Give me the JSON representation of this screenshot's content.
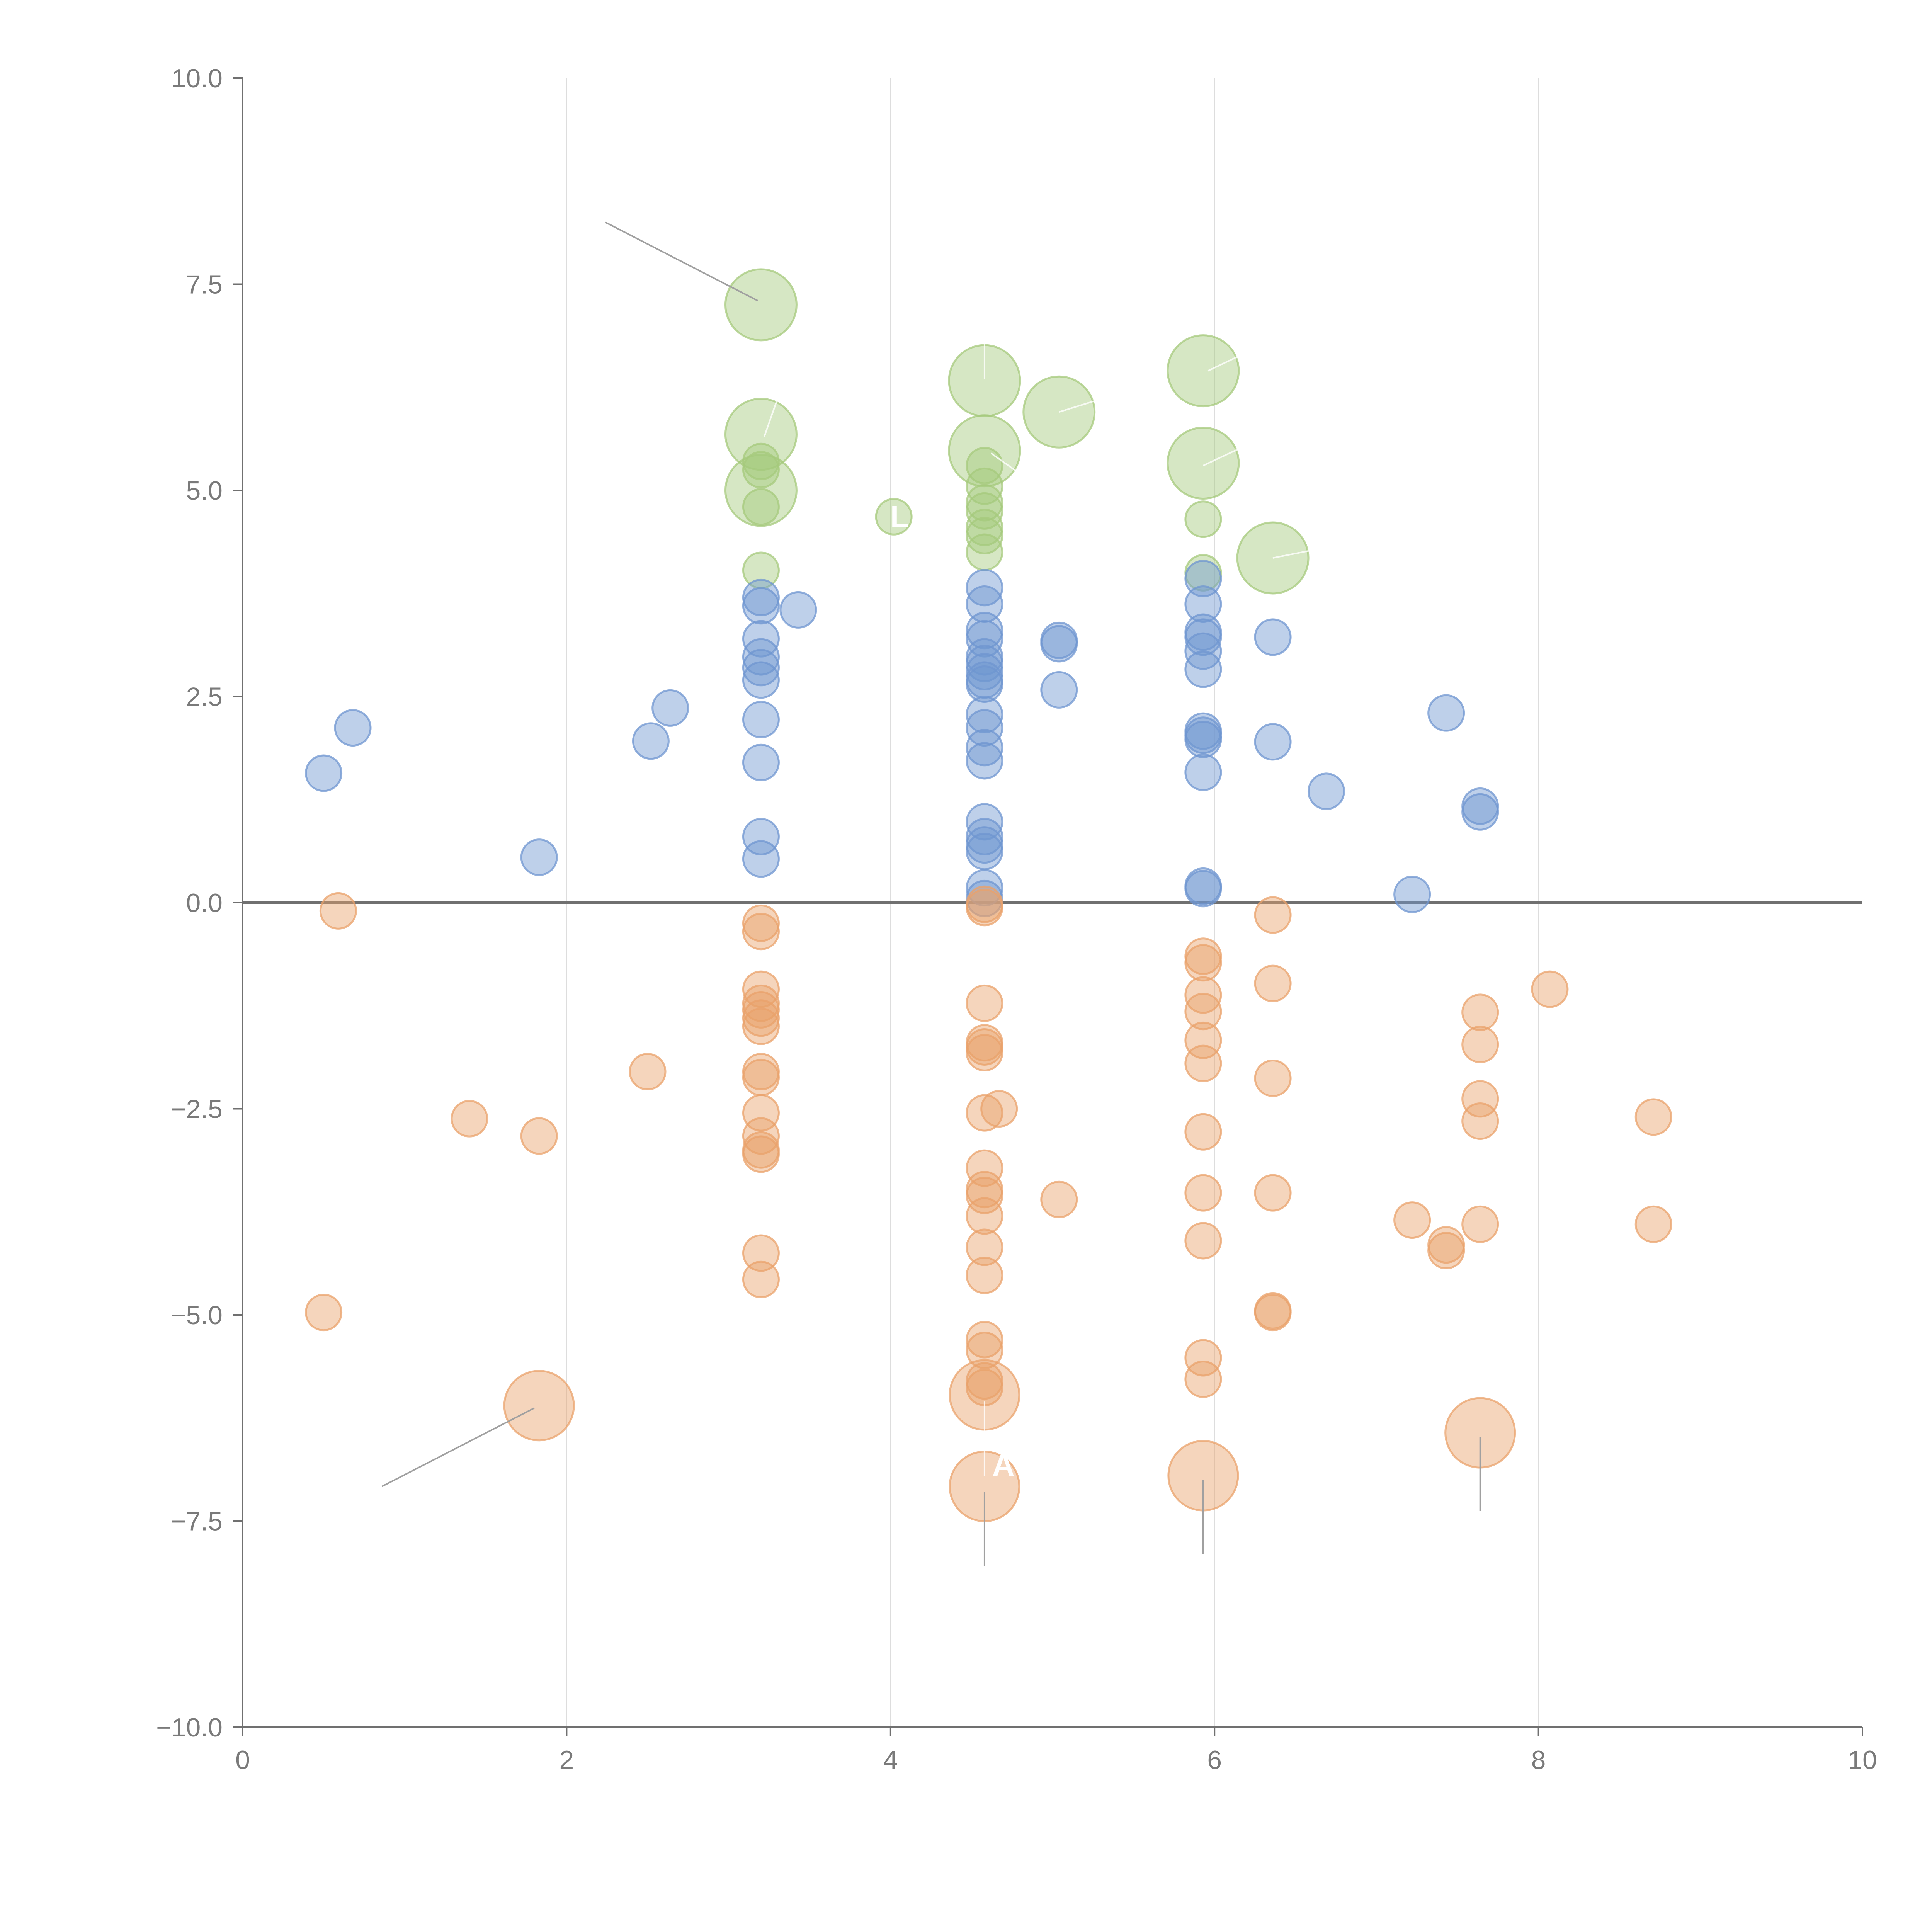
{
  "chart_data": {
    "type": "scatter",
    "title": "",
    "xlabel": "",
    "ylabel": "",
    "xlim": [
      0,
      10
    ],
    "ylim": [
      -10,
      10
    ],
    "x_ticks": [
      "0",
      "2",
      "4",
      "6",
      "8",
      "10"
    ],
    "y_ticks": [
      "10.0",
      "7.5",
      "5.0",
      "2.5",
      "0.0",
      "−2.5",
      "−5.0",
      "−7.5",
      "−10.0"
    ],
    "vertical_gridlines": [
      2,
      4,
      6,
      8
    ],
    "baseline_y": 0,
    "colors": {
      "green": "#a5c97c",
      "blue": "#6f96d0",
      "orange": "#e9a26b",
      "axis": "#707070",
      "grid": "#dddddd",
      "leader": "#a0a0a0"
    },
    "series": [
      {
        "name": "green",
        "points": [
          [
            3.2,
            7.25,
            "l"
          ],
          [
            3.2,
            5.68,
            "l"
          ],
          [
            3.2,
            5.0,
            "l"
          ],
          [
            3.2,
            5.35,
            "s"
          ],
          [
            3.2,
            5.25,
            "s"
          ],
          [
            3.2,
            4.8,
            "s"
          ],
          [
            3.2,
            4.03,
            "s"
          ],
          [
            4.02,
            4.68,
            "s"
          ],
          [
            4.58,
            6.33,
            "l"
          ],
          [
            4.58,
            5.48,
            "l"
          ],
          [
            4.58,
            5.3,
            "s"
          ],
          [
            4.58,
            5.05,
            "s"
          ],
          [
            4.58,
            4.85,
            "s"
          ],
          [
            4.58,
            4.75,
            "s"
          ],
          [
            4.58,
            4.55,
            "s"
          ],
          [
            4.58,
            4.45,
            "s"
          ],
          [
            4.58,
            4.25,
            "s"
          ],
          [
            5.04,
            5.95,
            "l"
          ],
          [
            5.93,
            6.45,
            "l"
          ],
          [
            5.93,
            5.33,
            "l"
          ],
          [
            5.93,
            4.65,
            "s"
          ],
          [
            5.93,
            4.0,
            "s"
          ],
          [
            6.36,
            4.18,
            "l"
          ]
        ]
      },
      {
        "name": "blue",
        "points": [
          [
            0.5,
            1.57
          ],
          [
            0.68,
            2.12
          ],
          [
            1.83,
            0.55
          ],
          [
            2.52,
            1.96
          ],
          [
            2.64,
            2.36
          ],
          [
            3.2,
            3.7
          ],
          [
            3.2,
            3.6
          ],
          [
            3.2,
            3.2
          ],
          [
            3.2,
            2.98
          ],
          [
            3.2,
            2.85
          ],
          [
            3.2,
            2.7
          ],
          [
            3.2,
            2.22
          ],
          [
            3.2,
            1.7
          ],
          [
            3.2,
            0.8
          ],
          [
            3.2,
            0.53
          ],
          [
            3.43,
            3.55
          ],
          [
            4.58,
            3.82
          ],
          [
            4.58,
            3.62
          ],
          [
            4.58,
            3.3
          ],
          [
            4.58,
            3.2
          ],
          [
            4.58,
            2.98
          ],
          [
            4.58,
            2.9
          ],
          [
            4.58,
            2.8
          ],
          [
            4.58,
            2.7
          ],
          [
            4.58,
            2.65
          ],
          [
            4.58,
            2.28
          ],
          [
            4.58,
            2.12
          ],
          [
            4.58,
            1.88
          ],
          [
            4.58,
            1.72
          ],
          [
            4.58,
            0.98
          ],
          [
            4.58,
            0.8
          ],
          [
            4.58,
            0.7
          ],
          [
            4.58,
            0.62
          ],
          [
            4.58,
            0.18
          ],
          [
            4.58,
            0.05
          ],
          [
            5.04,
            3.18
          ],
          [
            5.04,
            3.14
          ],
          [
            5.04,
            2.58
          ],
          [
            5.93,
            3.93
          ],
          [
            5.93,
            3.62
          ],
          [
            5.93,
            3.28
          ],
          [
            5.93,
            3.22
          ],
          [
            5.93,
            3.05
          ],
          [
            5.93,
            2.83
          ],
          [
            5.93,
            2.08
          ],
          [
            5.93,
            2.03
          ],
          [
            5.93,
            1.98
          ],
          [
            5.93,
            1.58
          ],
          [
            5.93,
            0.2
          ],
          [
            5.93,
            0.17
          ],
          [
            6.36,
            3.22
          ],
          [
            6.36,
            1.95
          ],
          [
            6.69,
            1.35
          ],
          [
            7.22,
            0.1
          ],
          [
            7.43,
            2.3
          ],
          [
            7.64,
            1.17
          ],
          [
            7.64,
            1.1
          ]
        ]
      },
      {
        "name": "orange",
        "points": [
          [
            0.5,
            -4.97,
            "s"
          ],
          [
            0.59,
            -0.1,
            "s"
          ],
          [
            1.4,
            -2.62,
            "s"
          ],
          [
            1.83,
            -2.83,
            "s"
          ],
          [
            1.83,
            -6.1,
            "l"
          ],
          [
            2.5,
            -2.05,
            "s"
          ],
          [
            3.2,
            -0.25,
            "s"
          ],
          [
            3.2,
            -0.35,
            "s"
          ],
          [
            3.2,
            -1.05,
            "s"
          ],
          [
            3.2,
            -1.22,
            "s"
          ],
          [
            3.2,
            -1.3,
            "s"
          ],
          [
            3.2,
            -1.4,
            "s"
          ],
          [
            3.2,
            -1.5,
            "s"
          ],
          [
            3.2,
            -2.05,
            "s"
          ],
          [
            3.2,
            -2.12,
            "s"
          ],
          [
            3.2,
            -2.55,
            "s"
          ],
          [
            3.2,
            -2.83,
            "s"
          ],
          [
            3.2,
            -3.0,
            "s"
          ],
          [
            3.2,
            -3.05,
            "s"
          ],
          [
            3.2,
            -4.25,
            "s"
          ],
          [
            3.2,
            -4.57,
            "s"
          ],
          [
            4.58,
            -0.02,
            "s"
          ],
          [
            4.58,
            -0.06,
            "s"
          ],
          [
            4.58,
            -1.22,
            "s"
          ],
          [
            4.58,
            -1.7,
            "s"
          ],
          [
            4.58,
            -1.75,
            "s"
          ],
          [
            4.58,
            -1.82,
            "s"
          ],
          [
            4.58,
            -2.55,
            "s"
          ],
          [
            4.58,
            -3.22,
            "s"
          ],
          [
            4.58,
            -3.48,
            "s"
          ],
          [
            4.58,
            -3.55,
            "s"
          ],
          [
            4.58,
            -3.8,
            "s"
          ],
          [
            4.58,
            -4.18,
            "s"
          ],
          [
            4.58,
            -4.52,
            "s"
          ],
          [
            4.58,
            -5.3,
            "s"
          ],
          [
            4.58,
            -5.43,
            "s"
          ],
          [
            4.58,
            -5.8,
            "s"
          ],
          [
            4.58,
            -5.88,
            "s"
          ],
          [
            4.58,
            -5.97,
            "l"
          ],
          [
            4.58,
            -7.08,
            "l"
          ],
          [
            4.67,
            -2.5,
            "s"
          ],
          [
            5.04,
            -3.6,
            "s"
          ],
          [
            5.93,
            -0.65,
            "s"
          ],
          [
            5.93,
            -0.73,
            "s"
          ],
          [
            5.93,
            -1.12,
            "s"
          ],
          [
            5.93,
            -1.32,
            "s"
          ],
          [
            5.93,
            -1.67,
            "s"
          ],
          [
            5.93,
            -1.95,
            "s"
          ],
          [
            5.93,
            -2.78,
            "s"
          ],
          [
            5.93,
            -3.52,
            "s"
          ],
          [
            5.93,
            -4.1,
            "s"
          ],
          [
            5.93,
            -5.52,
            "s"
          ],
          [
            5.93,
            -5.78,
            "s"
          ],
          [
            5.93,
            -6.95,
            "l"
          ],
          [
            6.36,
            -0.15,
            "s"
          ],
          [
            6.36,
            -0.98,
            "s"
          ],
          [
            6.36,
            -2.13,
            "s"
          ],
          [
            6.36,
            -3.52,
            "s"
          ],
          [
            6.36,
            -4.95,
            "s"
          ],
          [
            6.36,
            -4.97,
            "s"
          ],
          [
            7.22,
            -3.85,
            "s"
          ],
          [
            7.43,
            -4.15,
            "s"
          ],
          [
            7.43,
            -4.22,
            "s"
          ],
          [
            7.64,
            -1.33,
            "s"
          ],
          [
            7.64,
            -1.72,
            "s"
          ],
          [
            7.64,
            -2.38,
            "s"
          ],
          [
            7.64,
            -2.65,
            "s"
          ],
          [
            7.64,
            -3.9,
            "s"
          ],
          [
            7.64,
            -6.43,
            "l"
          ],
          [
            8.07,
            -1.05,
            "s"
          ],
          [
            8.71,
            -2.6,
            "s"
          ],
          [
            8.71,
            -3.9,
            "s"
          ]
        ]
      }
    ],
    "leader_lines": [
      {
        "series": "green",
        "from": [
          3.18,
          7.3
        ],
        "to": [
          2.24,
          8.25
        ]
      },
      {
        "series": "orange",
        "from": [
          1.8,
          -6.13
        ],
        "to": [
          0.86,
          -7.08
        ]
      },
      {
        "series": "orange",
        "from": [
          4.58,
          -7.15
        ],
        "to": [
          4.58,
          -8.05
        ]
      },
      {
        "series": "orange",
        "from": [
          5.93,
          -7.0
        ],
        "to": [
          5.93,
          -7.9
        ]
      },
      {
        "series": "orange",
        "from": [
          7.64,
          -6.48
        ],
        "to": [
          7.64,
          -7.38
        ]
      },
      {
        "series": "orange",
        "from": [
          4.58,
          -6.05
        ],
        "to": [
          4.58,
          -6.95
        ],
        "light": true
      },
      {
        "series": "green",
        "from": [
          4.58,
          6.35
        ],
        "to": [
          4.58,
          6.95
        ],
        "light": true
      },
      {
        "series": "green",
        "from": [
          5.96,
          6.45
        ],
        "to": [
          6.28,
          6.75
        ],
        "light": true
      },
      {
        "series": "green",
        "from": [
          5.93,
          5.3
        ],
        "to": [
          6.2,
          5.55
        ],
        "light": true
      },
      {
        "series": "green",
        "from": [
          5.04,
          5.95
        ],
        "to": [
          5.45,
          6.2
        ],
        "light": true
      },
      {
        "series": "green",
        "from": [
          3.22,
          5.65
        ],
        "to": [
          3.3,
          6.1
        ],
        "light": true
      },
      {
        "series": "green",
        "from": [
          4.62,
          5.45
        ],
        "to": [
          4.8,
          5.2
        ],
        "light": true
      },
      {
        "series": "green",
        "from": [
          6.36,
          4.18
        ],
        "to": [
          6.8,
          4.35
        ],
        "light": true
      }
    ],
    "annotations": [
      {
        "text": "A",
        "x": 4.58,
        "y": -6.95
      },
      {
        "text": "L",
        "x": 3.95,
        "y": 4.55
      }
    ]
  }
}
